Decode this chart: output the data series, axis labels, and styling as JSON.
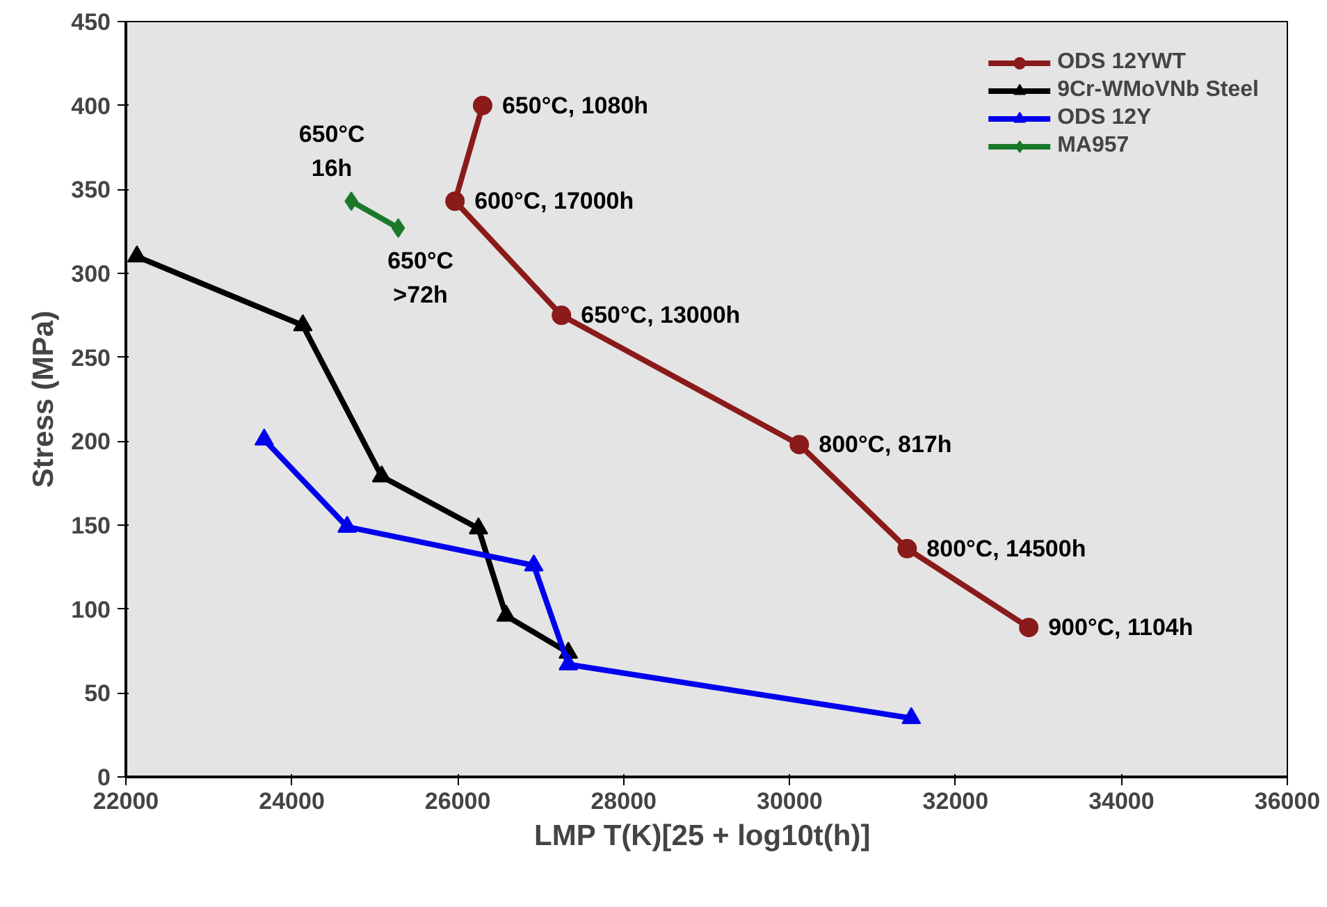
{
  "chart_data": {
    "type": "line",
    "xlabel": "LMP  T(K)[25 + log10t(h)]",
    "ylabel": "Stress (MPa)",
    "xlim": [
      22000,
      36000
    ],
    "xticks": [
      22000,
      24000,
      26000,
      28000,
      30000,
      32000,
      34000,
      36000
    ],
    "ylim": [
      0,
      450
    ],
    "yticks": [
      0,
      50,
      100,
      150,
      200,
      250,
      300,
      350,
      400,
      450
    ],
    "grid": false,
    "legend": "top right",
    "series": [
      {
        "name": "ODS 12YWT",
        "color": "#8b1a1a",
        "marker": "circle",
        "x": [
          26300,
          25967,
          27250,
          30117,
          31417,
          32883
        ],
        "values": [
          400,
          343,
          275,
          198,
          136,
          89
        ]
      },
      {
        "name": "9Cr-WMoVNb Steel",
        "color": "#000000",
        "marker": "triangle",
        "x": [
          22133,
          24133,
          25083,
          26250,
          26583,
          27333
        ],
        "values": [
          310,
          269,
          179,
          148,
          96,
          74
        ]
      },
      {
        "name": "ODS 12Y",
        "color": "#0000ee",
        "marker": "triangle",
        "x": [
          23667,
          24667,
          26917,
          27333,
          31467
        ],
        "values": [
          201,
          149,
          126,
          67,
          35
        ]
      },
      {
        "name": "MA957",
        "color": "#1a7a2a",
        "marker": "diamond",
        "x": [
          24717,
          25283
        ],
        "values": [
          343,
          327
        ]
      }
    ],
    "annotations": [
      {
        "text": "650°C, 1080h",
        "x": 26300,
        "y": 400
      },
      {
        "text": "600°C, 17000h",
        "x": 25967,
        "y": 343
      },
      {
        "text": "650°C, 13000h",
        "x": 27250,
        "y": 275
      },
      {
        "text": "800°C, 817h",
        "x": 30117,
        "y": 198
      },
      {
        "text": "800°C, 14500h",
        "x": 31417,
        "y": 136
      },
      {
        "text": "900°C, 1104h",
        "x": 32883,
        "y": 89
      },
      {
        "text": "650°C\n16h",
        "x": 24717,
        "y": 343
      },
      {
        "text": "650°C\n>72h",
        "x": 25283,
        "y": 327
      }
    ]
  }
}
